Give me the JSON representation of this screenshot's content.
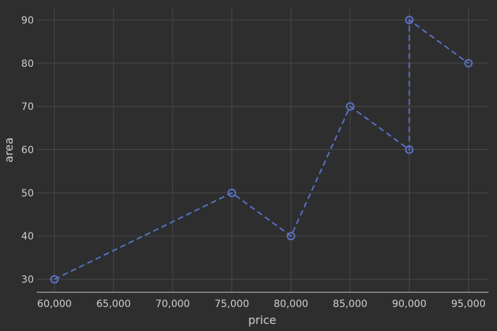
{
  "chart_data": {
    "type": "line",
    "xlabel": "price",
    "ylabel": "area",
    "xlim": [
      58500,
      96700
    ],
    "ylim": [
      27,
      93
    ],
    "xticks": [
      60000,
      65000,
      70000,
      75000,
      80000,
      85000,
      90000,
      95000
    ],
    "xtick_labels": [
      "60,000",
      "65,000",
      "70,000",
      "75,000",
      "80,000",
      "85,000",
      "90,000",
      "95,000"
    ],
    "yticks": [
      30,
      40,
      50,
      60,
      70,
      80,
      90
    ],
    "ytick_labels": [
      "30",
      "40",
      "50",
      "60",
      "70",
      "80",
      "90"
    ],
    "grid": true,
    "line_style": "dashed",
    "marker": "open-circle",
    "colors": {
      "background": "#2e2e2e",
      "series": "#5b72c8",
      "grid": "#4a4a4a",
      "text": "#d0d0d0"
    },
    "series": [
      {
        "x": [
          60000,
          75000,
          80000,
          85000,
          90000,
          90000,
          95000
        ],
        "y": [
          30,
          50,
          40,
          70,
          60,
          90,
          80
        ]
      }
    ]
  }
}
